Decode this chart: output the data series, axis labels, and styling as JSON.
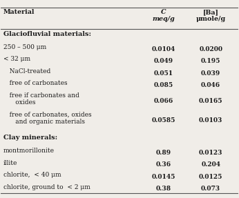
{
  "header_material": "Material",
  "header_c": "C\nmeq/g",
  "header_ba": "[Ba]\nμmole/g",
  "section1_title": "Glaciofluvial materials:",
  "section2_title": "Clay minerals:",
  "rows": [
    {
      "label": "250 – 500 μm",
      "indent": 0,
      "c": "0.0104",
      "ba": "0.0200"
    },
    {
      "label": "< 32 μm",
      "indent": 0,
      "c": "0.049",
      "ba": "0.195"
    },
    {
      "label": "   NaCl-treated",
      "indent": 1,
      "c": "0.051",
      "ba": "0.039"
    },
    {
      "label": "   free of carbonates",
      "indent": 1,
      "c": "0.085",
      "ba": "0.046"
    },
    {
      "label": "   free if carbonates and\n      oxides",
      "indent": 1,
      "c": "0.066",
      "ba": "0.0165"
    },
    {
      "label": "   free of carbonates, oxides\n      and organic materials",
      "indent": 1,
      "c": "0.0585",
      "ba": "0.0103"
    },
    {
      "label": "montmorillonite",
      "indent": 0,
      "c": "0.89",
      "ba": "0.0123"
    },
    {
      "label": "illite",
      "indent": 0,
      "c": "0.36",
      "ba": "0.204"
    },
    {
      "label": "chlorite,  < 40 μm",
      "indent": 0,
      "c": "0.0145",
      "ba": "0.0125"
    },
    {
      "label": "chlorite, ground to  < 2 μm",
      "indent": 0,
      "c": "0.38",
      "ba": "0.073"
    }
  ],
  "bg_color": "#f0ede8",
  "text_color": "#1a1a1a",
  "line_color": "#555555",
  "section_fontsize": 7.0,
  "header_fontsize": 6.8,
  "row_fontsize": 6.5
}
